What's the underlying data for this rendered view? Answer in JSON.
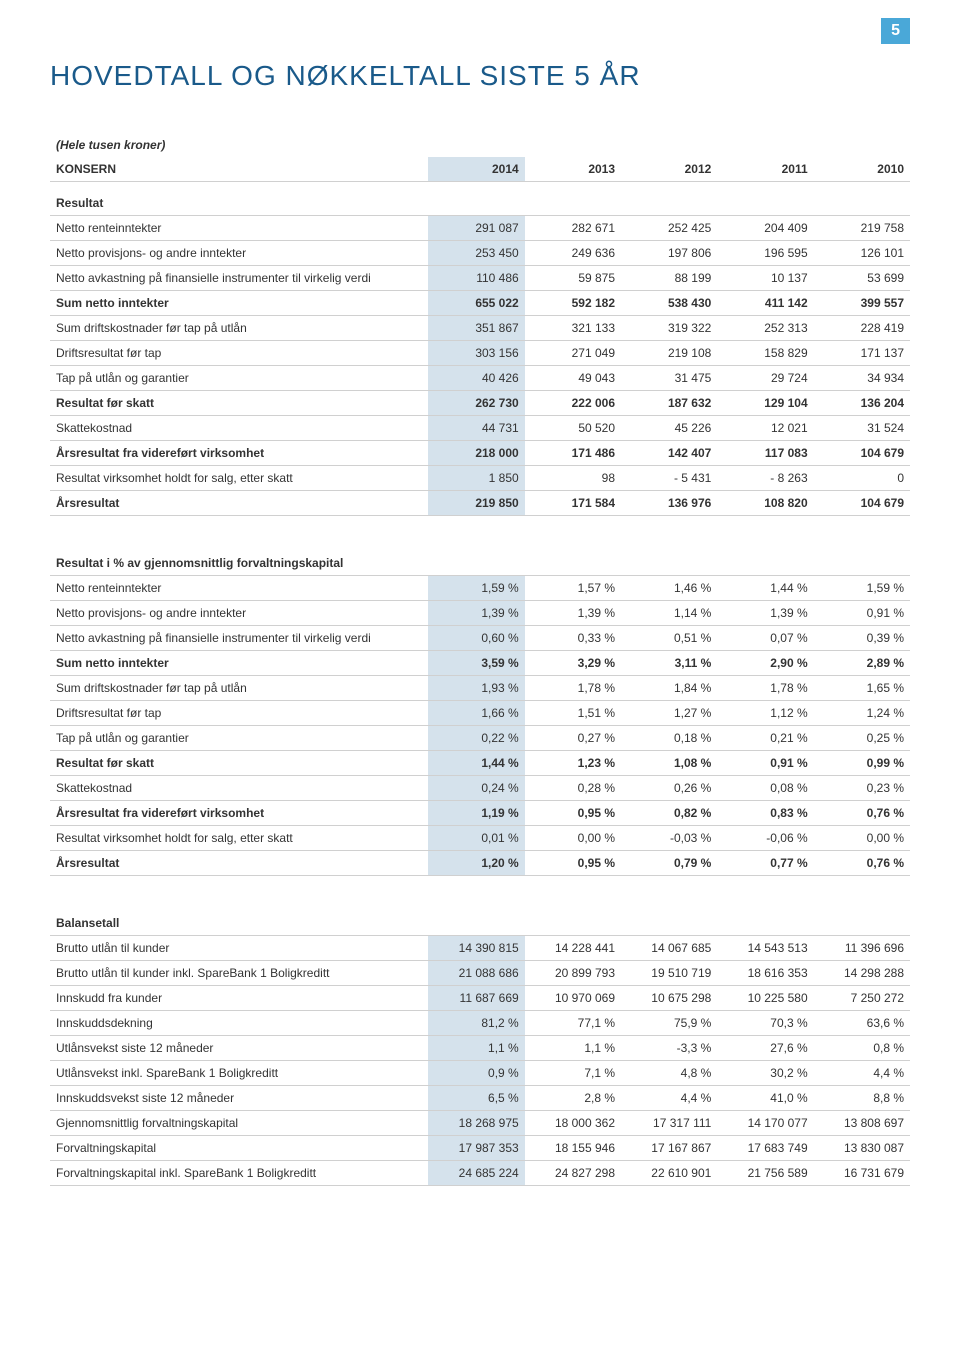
{
  "page_number": "5",
  "title": "HOVEDTALL OG NØKKELTALL SISTE 5 ÅR",
  "subtitle": "(Hele tusen kroner)",
  "konsern_label": "KONSERN",
  "years": [
    "2014",
    "2013",
    "2012",
    "2011",
    "2010"
  ],
  "colors": {
    "heading": "#1a5a8a",
    "page_badge_bg": "#4aa8d8",
    "highlight_col_bg": "#d5e2ec",
    "border": "#d0d0d0",
    "text": "#333333"
  },
  "typography": {
    "title_fontsize": 28,
    "body_fontsize": 12,
    "font_family": "Arial"
  },
  "sections": [
    {
      "heading": "Resultat",
      "rows": [
        {
          "label": "Netto renteinntekter",
          "v": [
            "291 087",
            "282 671",
            "252 425",
            "204 409",
            "219 758"
          ]
        },
        {
          "label": "Netto provisjons- og andre inntekter",
          "v": [
            "253 450",
            "249 636",
            "197 806",
            "196 595",
            "126 101"
          ]
        },
        {
          "label": "Netto avkastning på finansielle instrumenter til virkelig verdi",
          "v": [
            "110 486",
            "59 875",
            "88 199",
            "10 137",
            "53 699"
          ]
        },
        {
          "label": "Sum netto inntekter",
          "v": [
            "655 022",
            "592 182",
            "538 430",
            "411 142",
            "399 557"
          ],
          "bold": true
        },
        {
          "label": "Sum driftskostnader før tap på utlån",
          "v": [
            "351 867",
            "321 133",
            "319 322",
            "252 313",
            "228 419"
          ]
        },
        {
          "label": "Driftsresultat før tap",
          "v": [
            "303 156",
            "271 049",
            "219 108",
            "158 829",
            "171 137"
          ]
        },
        {
          "label": "Tap på utlån og garantier",
          "v": [
            "40 426",
            "49 043",
            "31 475",
            "29 724",
            "34 934"
          ]
        },
        {
          "label": "Resultat før skatt",
          "v": [
            "262 730",
            "222 006",
            "187 632",
            "129 104",
            "136 204"
          ],
          "bold": true
        },
        {
          "label": "Skattekostnad",
          "v": [
            "44 731",
            "50 520",
            "45 226",
            "12 021",
            "31 524"
          ]
        },
        {
          "label": "Årsresultat fra videreført virksomhet",
          "v": [
            "218 000",
            "171 486",
            "142 407",
            "117 083",
            "104 679"
          ],
          "bold": true
        },
        {
          "label": "Resultat virksomhet holdt for salg, etter skatt",
          "v": [
            "1 850",
            "98",
            "- 5 431",
            "- 8 263",
            "0"
          ]
        },
        {
          "label": "Årsresultat",
          "v": [
            "219 850",
            "171 584",
            "136 976",
            "108 820",
            "104 679"
          ],
          "bold": true
        }
      ]
    },
    {
      "heading": "Resultat i % av gjennomsnittlig forvaltningskapital",
      "rows": [
        {
          "label": "Netto renteinntekter",
          "v": [
            "1,59 %",
            "1,57 %",
            "1,46 %",
            "1,44 %",
            "1,59 %"
          ]
        },
        {
          "label": "Netto provisjons- og andre inntekter",
          "v": [
            "1,39 %",
            "1,39 %",
            "1,14 %",
            "1,39 %",
            "0,91 %"
          ]
        },
        {
          "label": "Netto avkastning på finansielle instrumenter til virkelig verdi",
          "v": [
            "0,60 %",
            "0,33 %",
            "0,51 %",
            "0,07 %",
            "0,39 %"
          ]
        },
        {
          "label": "Sum netto inntekter",
          "v": [
            "3,59 %",
            "3,29 %",
            "3,11 %",
            "2,90 %",
            "2,89 %"
          ],
          "bold": true
        },
        {
          "label": "Sum driftskostnader før tap på utlån",
          "v": [
            "1,93 %",
            "1,78 %",
            "1,84 %",
            "1,78 %",
            "1,65 %"
          ]
        },
        {
          "label": "Driftsresultat før tap",
          "v": [
            "1,66 %",
            "1,51 %",
            "1,27 %",
            "1,12 %",
            "1,24 %"
          ]
        },
        {
          "label": "Tap på utlån og garantier",
          "v": [
            "0,22 %",
            "0,27 %",
            "0,18 %",
            "0,21 %",
            "0,25 %"
          ]
        },
        {
          "label": "Resultat før skatt",
          "v": [
            "1,44 %",
            "1,23 %",
            "1,08 %",
            "0,91 %",
            "0,99 %"
          ],
          "bold": true
        },
        {
          "label": "Skattekostnad",
          "v": [
            "0,24 %",
            "0,28 %",
            "0,26 %",
            "0,08 %",
            "0,23 %"
          ]
        },
        {
          "label": "Årsresultat fra videreført virksomhet",
          "v": [
            "1,19 %",
            "0,95 %",
            "0,82 %",
            "0,83 %",
            "0,76 %"
          ],
          "bold": true
        },
        {
          "label": "Resultat virksomhet holdt for salg, etter skatt",
          "v": [
            "0,01 %",
            "0,00 %",
            "-0,03 %",
            "-0,06 %",
            "0,00 %"
          ]
        },
        {
          "label": "Årsresultat",
          "v": [
            "1,20 %",
            "0,95 %",
            "0,79 %",
            "0,77 %",
            "0,76 %"
          ],
          "bold": true
        }
      ]
    },
    {
      "heading": "Balansetall",
      "rows": [
        {
          "label": "Brutto utlån til kunder",
          "v": [
            "14 390 815",
            "14 228 441",
            "14 067 685",
            "14 543 513",
            "11 396 696"
          ]
        },
        {
          "label": "Brutto utlån til kunder inkl. SpareBank 1 Boligkreditt",
          "v": [
            "21 088 686",
            "20 899 793",
            "19 510 719",
            "18 616 353",
            "14 298 288"
          ]
        },
        {
          "label": "Innskudd fra kunder",
          "v": [
            "11 687 669",
            "10 970 069",
            "10 675 298",
            "10 225 580",
            "7 250 272"
          ]
        },
        {
          "label": "Innskuddsdekning",
          "v": [
            "81,2 %",
            "77,1 %",
            "75,9 %",
            "70,3 %",
            "63,6 %"
          ]
        },
        {
          "label": "Utlånsvekst siste 12 måneder",
          "v": [
            "1,1 %",
            "1,1 %",
            "-3,3 %",
            "27,6 %",
            "0,8 %"
          ]
        },
        {
          "label": "Utlånsvekst inkl. SpareBank 1 Boligkreditt",
          "v": [
            "0,9 %",
            "7,1 %",
            "4,8 %",
            "30,2 %",
            "4,4 %"
          ]
        },
        {
          "label": "Innskuddsvekst siste 12 måneder",
          "v": [
            "6,5 %",
            "2,8 %",
            "4,4 %",
            "41,0 %",
            "8,8 %"
          ]
        },
        {
          "label": "Gjennomsnittlig forvaltningskapital",
          "v": [
            "18 268 975",
            "18 000 362",
            "17 317 111",
            "14 170 077",
            "13 808 697"
          ]
        },
        {
          "label": "Forvaltningskapital",
          "v": [
            "17 987 353",
            "18 155 946",
            "17 167 867",
            "17 683 749",
            "13 830 087"
          ]
        },
        {
          "label": "Forvaltningskapital inkl. SpareBank 1 Boligkreditt",
          "v": [
            "24 685 224",
            "24 827 298",
            "22 610 901",
            "21 756 589",
            "16 731 679"
          ]
        }
      ]
    }
  ]
}
